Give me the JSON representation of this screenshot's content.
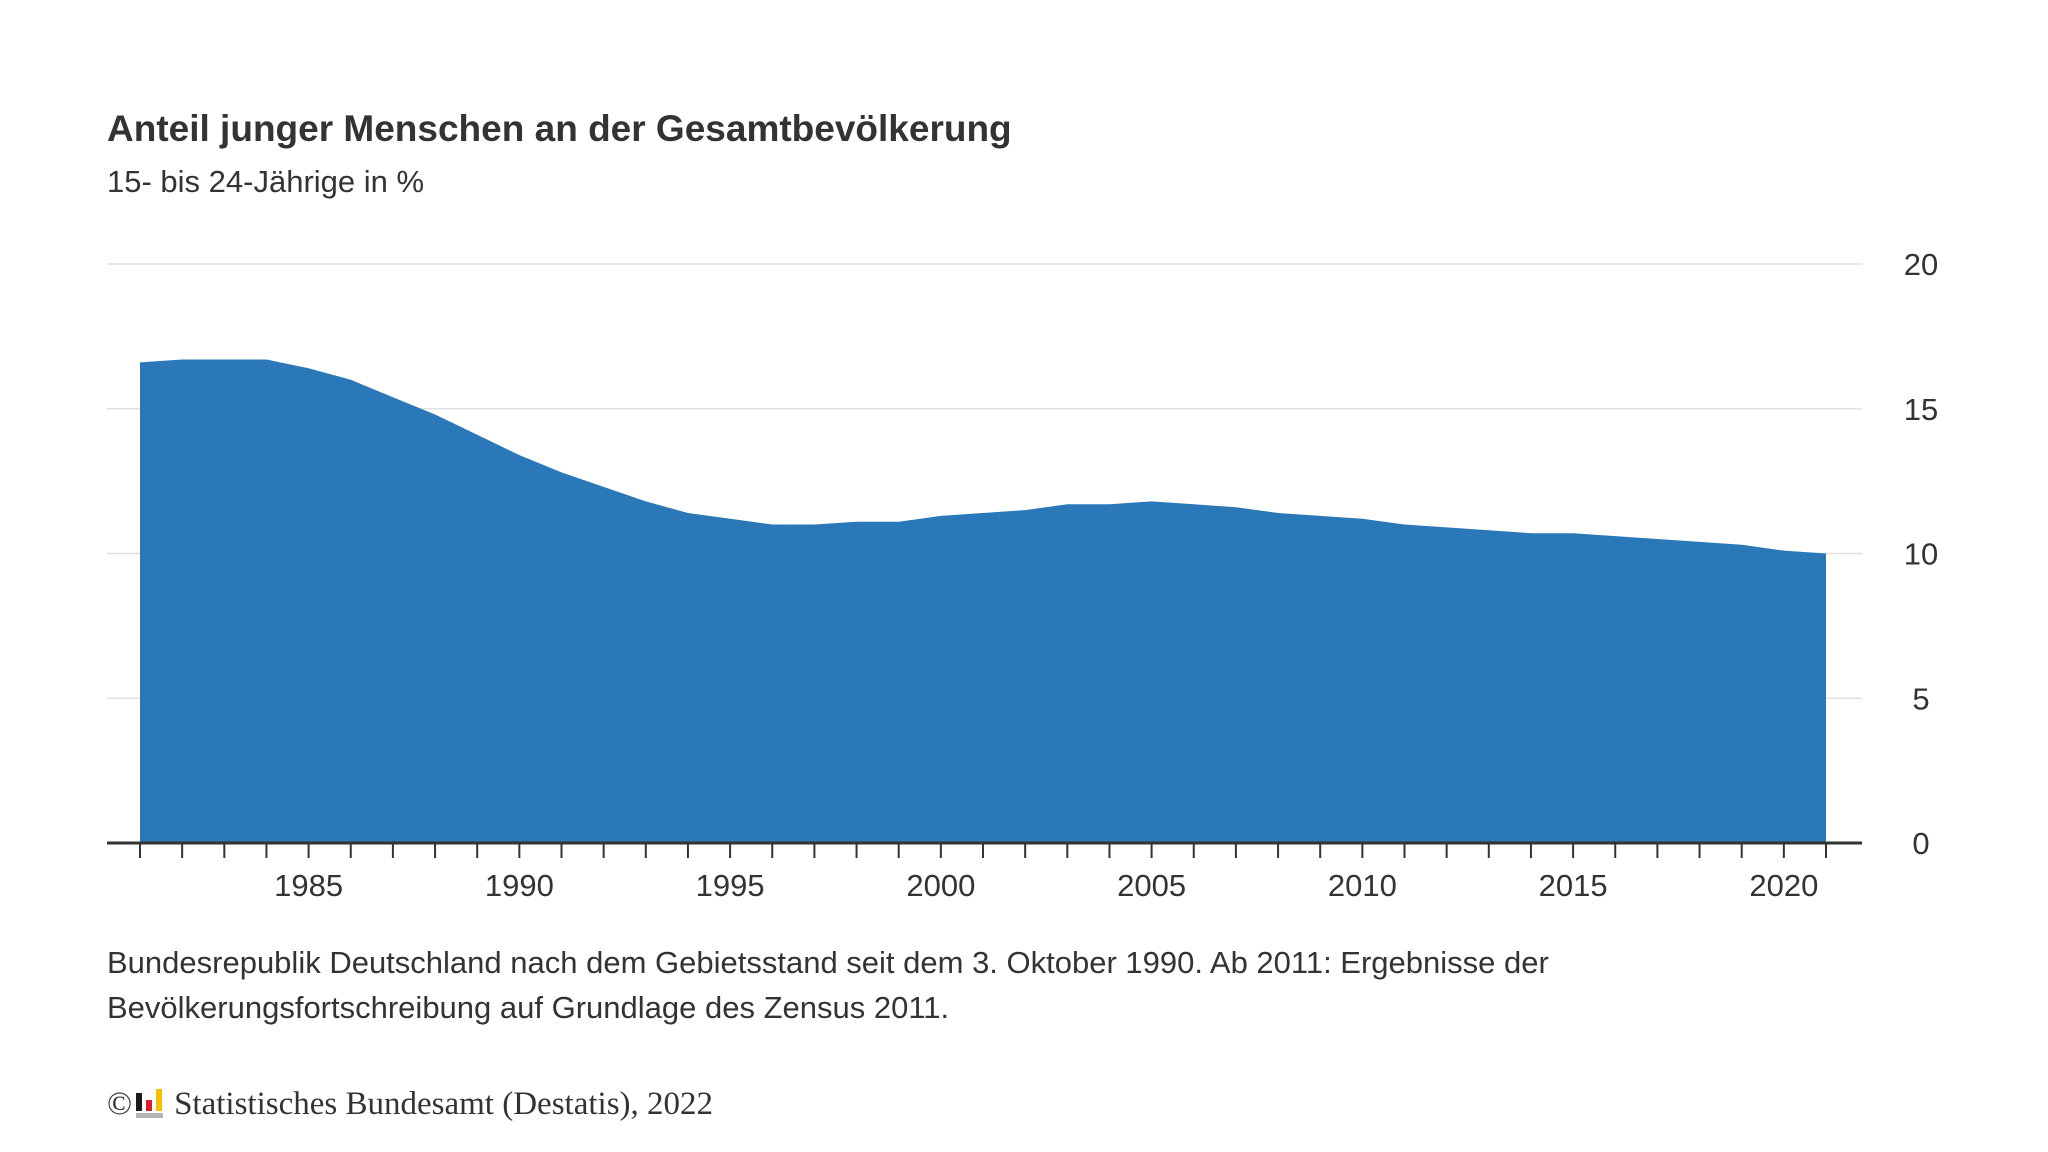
{
  "header": {
    "title": "Anteil junger Menschen an der Gesamtbevölkerung",
    "subtitle": "15- bis 24-Jährige in %"
  },
  "footnote": {
    "line1": "Bundesrepublik Deutschland nach dem Gebietsstand seit dem 3. Oktober 1990. Ab 2011: Ergebnisse der",
    "line2": "Bevölkerungsfortschreibung auf Grundlage des Zensus 2011."
  },
  "copyright": {
    "symbol": "©",
    "logo_icon": "destatis-logo-icon",
    "text": "Statistisches Bundesamt (Destatis), 2022"
  },
  "colors": {
    "area_fill": "#2a78b7",
    "gridline": "#e0e0e0",
    "axis": "#333333",
    "text": "#333333"
  },
  "chart_data": {
    "type": "area",
    "title": "Anteil junger Menschen an der Gesamtbevölkerung",
    "subtitle": "15- bis 24-Jährige in %",
    "xlabel": "",
    "ylabel": "",
    "x": [
      1981,
      1982,
      1983,
      1984,
      1985,
      1986,
      1987,
      1988,
      1989,
      1990,
      1991,
      1992,
      1993,
      1994,
      1995,
      1996,
      1997,
      1998,
      1999,
      2000,
      2001,
      2002,
      2003,
      2004,
      2005,
      2006,
      2007,
      2008,
      2009,
      2010,
      2011,
      2012,
      2013,
      2014,
      2015,
      2016,
      2017,
      2018,
      2019,
      2020,
      2021
    ],
    "series": [
      {
        "name": "15- bis 24-Jährige in %",
        "values": [
          16.6,
          16.7,
          16.7,
          16.7,
          16.4,
          16.0,
          15.4,
          14.8,
          14.1,
          13.4,
          12.8,
          12.3,
          11.8,
          11.4,
          11.2,
          11.0,
          11.0,
          11.1,
          11.1,
          11.3,
          11.4,
          11.5,
          11.7,
          11.7,
          11.8,
          11.7,
          11.6,
          11.4,
          11.3,
          11.2,
          11.0,
          10.9,
          10.8,
          10.7,
          10.7,
          10.6,
          10.5,
          10.4,
          10.3,
          10.1,
          10.0
        ]
      }
    ],
    "x_range": [
      1980.2,
      2021.9
    ],
    "ylim": [
      0,
      20
    ],
    "y_ticks": [
      0,
      5,
      10,
      15,
      20
    ],
    "y_tick_labels": [
      "0",
      "5",
      "10",
      "15",
      "20"
    ],
    "x_tick_labels": [
      {
        "year": 1985,
        "label": "1985"
      },
      {
        "year": 1990,
        "label": "1990"
      },
      {
        "year": 1995,
        "label": "1995"
      },
      {
        "year": 2000,
        "label": "2000"
      },
      {
        "year": 2005,
        "label": "2005"
      },
      {
        "year": 2010,
        "label": "2010"
      },
      {
        "year": 2015,
        "label": "2015"
      },
      {
        "year": 2020,
        "label": "2020"
      }
    ],
    "y_axis_position": "right",
    "grid": true,
    "legend": "none"
  }
}
